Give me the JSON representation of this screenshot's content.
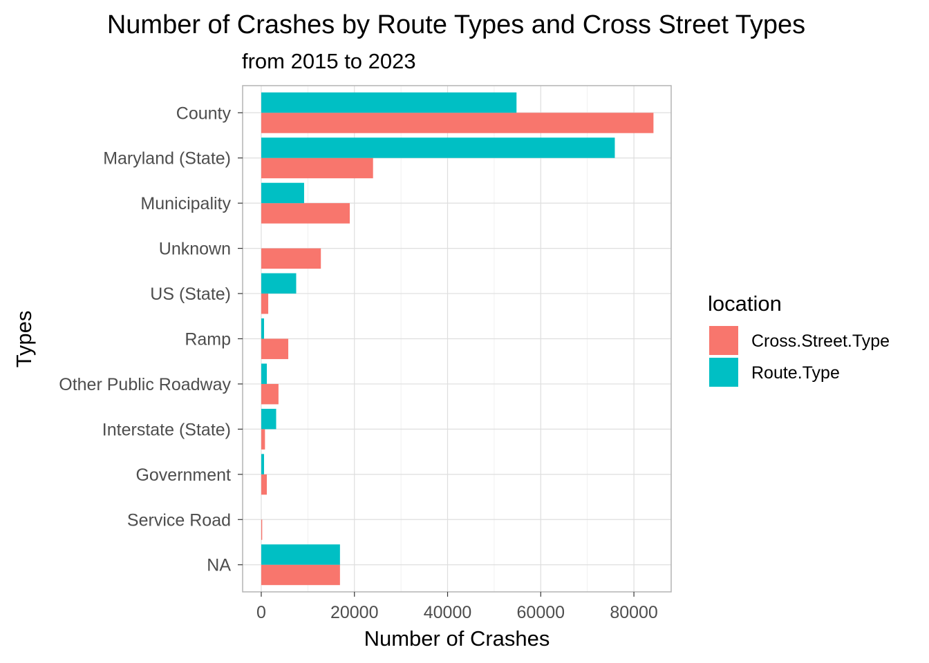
{
  "chart_data": {
    "type": "bar",
    "orientation": "horizontal",
    "title": "Number of Crashes by Route Types and Cross Street Types",
    "subtitle": "from 2015 to 2023",
    "xlabel": "Number of Crashes",
    "ylabel": "Types",
    "xlim": [
      -4000,
      88000
    ],
    "xticks": [
      0,
      20000,
      40000,
      60000,
      80000
    ],
    "x_tick_labels": [
      "0",
      "20000",
      "40000",
      "60000",
      "80000"
    ],
    "grid": true,
    "legend_position": "right",
    "legend_title": "location",
    "categories": [
      "County",
      "Maryland (State)",
      "Municipality",
      "Unknown",
      "US (State)",
      "Ramp",
      "Other Public Roadway",
      "Interstate (State)",
      "Government",
      "Service Road",
      "NA"
    ],
    "series": [
      {
        "name": "Cross.Street.Type",
        "color": "#f8766d",
        "values": [
          84200,
          24000,
          19000,
          12800,
          1500,
          5800,
          3700,
          800,
          1200,
          200,
          16900
        ]
      },
      {
        "name": "Route.Type",
        "color": "#00bfc4",
        "values": [
          54800,
          75900,
          9200,
          0,
          7500,
          600,
          1200,
          3200,
          600,
          0,
          16900
        ]
      }
    ]
  }
}
